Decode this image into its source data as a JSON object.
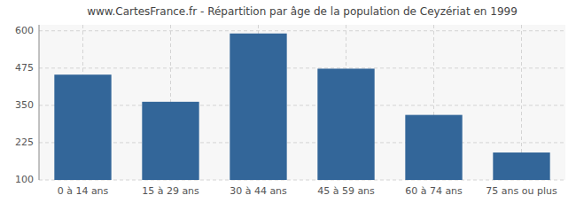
{
  "chart_data": {
    "type": "bar",
    "title": "www.CartesFrance.fr - Répartition par âge de la population de Ceyzériat en 1999",
    "categories": [
      "0 à 14 ans",
      "15 à 29 ans",
      "30 à 44 ans",
      "45 à 59 ans",
      "60 à 74 ans",
      "75 ans ou plus"
    ],
    "values": [
      453,
      362,
      591,
      473,
      318,
      192
    ],
    "color": "#336699",
    "ylim": [
      100,
      620
    ],
    "yticks": [
      100,
      225,
      350,
      475,
      600
    ],
    "grid": true
  }
}
